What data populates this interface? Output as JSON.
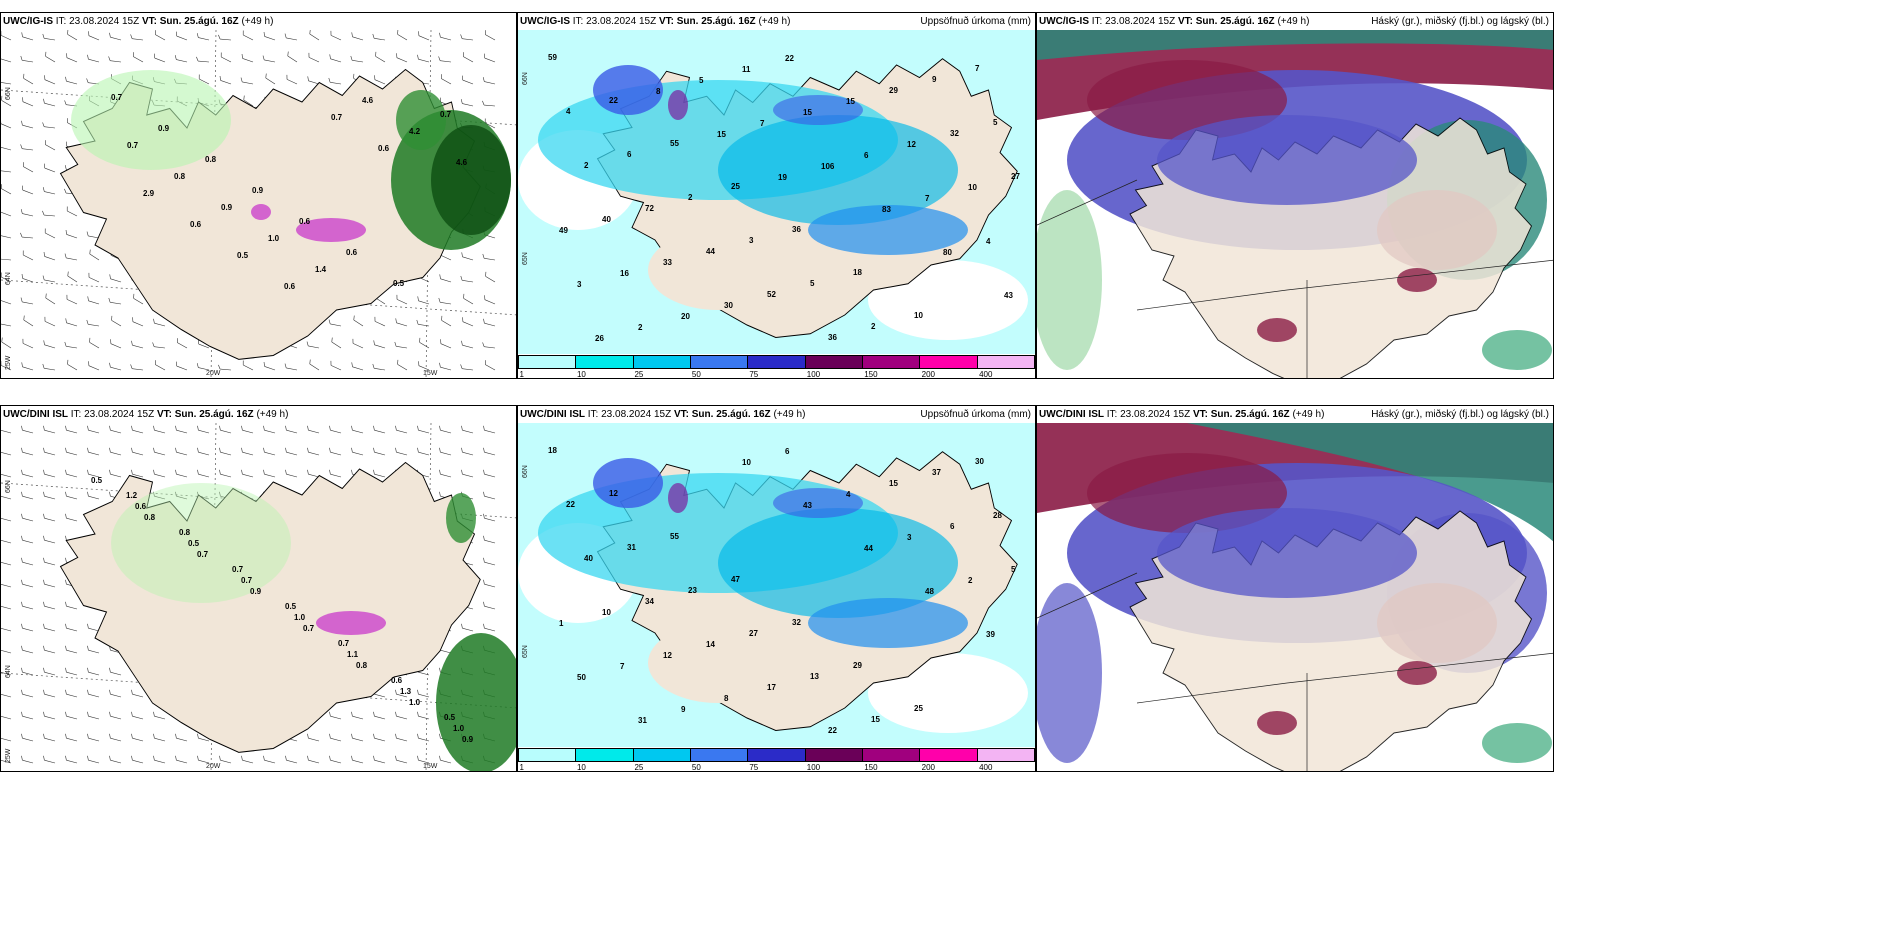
{
  "panels": {
    "igis_wind": {
      "model": "UWC/IG-IS",
      "it_label": "IT:",
      "it": "23.08.2024 15Z",
      "vt_label": "VT:",
      "vt": "Sun. 25.ágú. 16Z",
      "lead": "(+49 h)",
      "right": ""
    },
    "igis_precip": {
      "model": "UWC/IG-IS",
      "it_label": "IT:",
      "it": "23.08.2024 15Z",
      "vt_label": "VT:",
      "vt": "Sun. 25.ágú. 16Z",
      "lead": "(+49 h)",
      "right": "Uppsöfnuð úrkoma (mm)"
    },
    "igis_cloud": {
      "model": "UWC/IG-IS",
      "it_label": "IT:",
      "it": "23.08.2024 15Z",
      "vt_label": "VT:",
      "vt": "Sun. 25.ágú. 16Z",
      "lead": "(+49 h)",
      "right": "Háský (gr.), miðský (fj.bl.) og lágský (bl.)"
    },
    "dini_wind": {
      "model": "UWC/DINI ISL",
      "it_label": "IT:",
      "it": "23.08.2024 15Z",
      "vt_label": "VT:",
      "vt": "Sun. 25.ágú. 16Z",
      "lead": "(+49 h)",
      "right": ""
    },
    "dini_precip": {
      "model": "UWC/DINI ISL",
      "it_label": "IT:",
      "it": "23.08.2024 15Z",
      "vt_label": "VT:",
      "vt": "Sun. 25.ágú. 16Z",
      "lead": "(+49 h)",
      "right": "Uppsöfnuð úrkoma (mm)"
    },
    "dini_cloud": {
      "model": "UWC/DINI ISL",
      "it_label": "IT:",
      "it": "23.08.2024 15Z",
      "vt_label": "VT:",
      "vt": "Sun. 25.ágú. 16Z",
      "lead": "(+49 h)",
      "right": "Háský (gr.), miðský (fj.bl.) og lágský (bl.)"
    }
  },
  "axes": {
    "lat66": "66N",
    "lat64": "64N",
    "lat65": "65N",
    "lon25": "25W",
    "lon20": "20W",
    "lon15": "15W"
  },
  "colorbar": {
    "ticks": [
      "1",
      "10",
      "25",
      "50",
      "75",
      "100",
      "150",
      "200",
      "400"
    ],
    "colors": [
      "#b8fdfd",
      "#00eaea",
      "#00c8f0",
      "#3a78f0",
      "#2b2bc8",
      "#6a0058",
      "#a0007e",
      "#ff00aa",
      "#f3b4f3"
    ]
  },
  "colors": {
    "land": "#f1e6d8",
    "sea": "#ffffff",
    "precip_light": "#c3fdfd",
    "precip_mid": "#3ad7f0",
    "precip_heavy": "#3a5ae6",
    "cloud_high": "#2a8a7a",
    "cloud_mid": "#8a1b45",
    "cloud_low": "#5655c8",
    "wind_green": "#1f7a25",
    "snow_magenta": "#cc44cc"
  },
  "labels": {
    "igis_wind": [
      "0.7",
      "0.9",
      "0.8",
      "0.9",
      "0.6",
      "0.6",
      "0.5",
      "0.7",
      "0.7",
      "0.8",
      "0.9",
      "1.0",
      "1.4",
      "4.6",
      "4.2",
      "4.6",
      "2.9",
      "0.6",
      "0.5",
      "0.6",
      "0.7",
      "0.6"
    ],
    "dini_wind": [
      "0.5",
      "0.8",
      "0.7",
      "0.9",
      "0.7",
      "0.8",
      "1.0",
      "0.9",
      "0.6",
      "0.5",
      "0.7",
      "1.0",
      "1.1",
      "1.3",
      "1.0",
      "1.2",
      "0.8",
      "0.7",
      "0.5",
      "0.7",
      "0.6",
      "0.5"
    ],
    "igis_precip": [
      "59",
      "22",
      "55",
      "25",
      "36",
      "18",
      "10",
      "7",
      "4",
      "6",
      "2",
      "3",
      "5",
      "2",
      "9",
      "5",
      "2",
      "72",
      "44",
      "52",
      "36",
      "29",
      "32",
      "27",
      "40",
      "33",
      "30",
      "22",
      "15",
      "12",
      "10",
      "49",
      "16",
      "20",
      "11",
      "15",
      "6",
      "7",
      "4",
      "3",
      "2",
      "5",
      "7",
      "106",
      "83",
      "80",
      "43",
      "26",
      "8",
      "15",
      "19"
    ],
    "dini_precip": [
      "18",
      "12",
      "55",
      "47",
      "32",
      "29",
      "25",
      "30",
      "22",
      "31",
      "23",
      "27",
      "13",
      "15",
      "37",
      "28",
      "40",
      "34",
      "14",
      "17",
      "22",
      "15",
      "6",
      "5",
      "10",
      "12",
      "8",
      "6",
      "4",
      "3",
      "2",
      "1",
      "7",
      "9",
      "10",
      "43",
      "44",
      "48",
      "39",
      "50",
      "31"
    ]
  }
}
